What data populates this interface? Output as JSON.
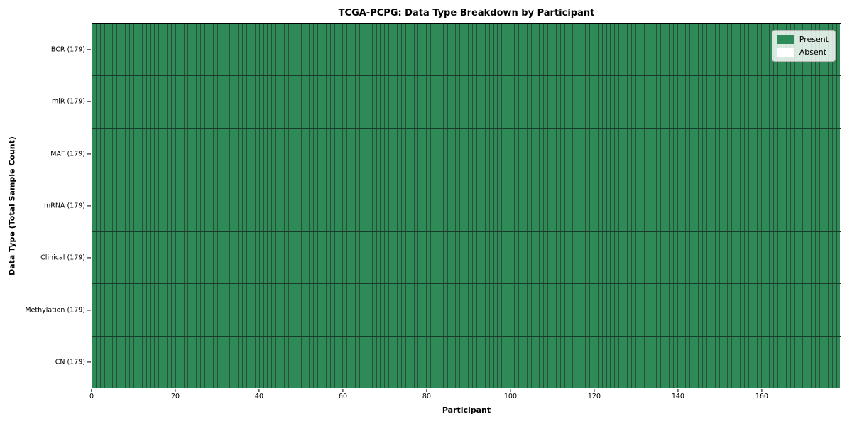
{
  "chart_data": {
    "type": "heatmap",
    "title": "TCGA-PCPG: Data Type Breakdown by Participant",
    "xlabel": "Participant",
    "ylabel": "Data Type (Total Sample Count)",
    "x_ticks": [
      0,
      20,
      40,
      60,
      80,
      100,
      120,
      140,
      160
    ],
    "x_range": [
      0,
      179
    ],
    "n_participants": 179,
    "rows": [
      {
        "label": "BCR (179)",
        "data_type": "BCR",
        "total_samples": 179,
        "present": 179,
        "absent": 0
      },
      {
        "label": "miR (179)",
        "data_type": "miR",
        "total_samples": 179,
        "present": 179,
        "absent": 0
      },
      {
        "label": "MAF (179)",
        "data_type": "MAF",
        "total_samples": 179,
        "present": 179,
        "absent": 0
      },
      {
        "label": "mRNA (179)",
        "data_type": "mRNA",
        "total_samples": 179,
        "present": 179,
        "absent": 0
      },
      {
        "label": "Clinical (179)",
        "data_type": "Clinical",
        "total_samples": 179,
        "present": 179,
        "absent": 0
      },
      {
        "label": "Methylation (179)",
        "data_type": "Methylation",
        "total_samples": 179,
        "present": 179,
        "absent": 0
      },
      {
        "label": "CN (179)",
        "data_type": "CN",
        "total_samples": 179,
        "present": 179,
        "absent": 0
      }
    ],
    "legend": {
      "position": "upper right",
      "entries": [
        {
          "label": "Present",
          "color": "#2e8b57"
        },
        {
          "label": "Absent",
          "color": "#ffffff"
        }
      ]
    },
    "colors": {
      "present": "#2e8b57",
      "absent": "#ffffff",
      "cell_edge": "#2a4e3a",
      "row_edge": "#1a3a28",
      "spine": "#000000"
    },
    "grid": false
  }
}
